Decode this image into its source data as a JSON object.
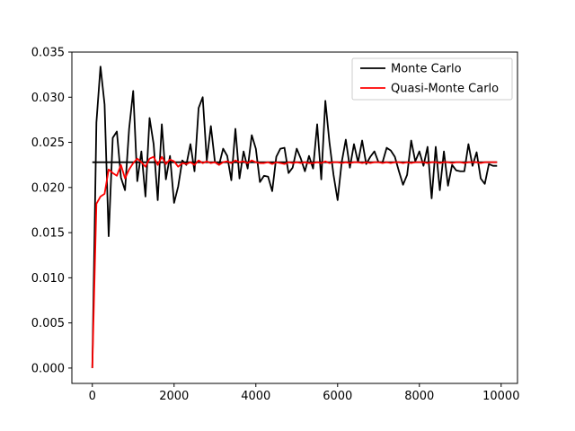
{
  "chart_data": {
    "type": "line",
    "title": "",
    "xlabel": "",
    "ylabel": "",
    "xlim": [
      -500,
      10400
    ],
    "ylim": [
      -0.0017,
      0.035
    ],
    "xticks": [
      0,
      2000,
      4000,
      6000,
      8000,
      10000
    ],
    "xtick_labels": [
      "0",
      "2000",
      "4000",
      "6000",
      "8000",
      "10000"
    ],
    "yticks": [
      0.0,
      0.005,
      0.01,
      0.015,
      0.02,
      0.025,
      0.03,
      0.035
    ],
    "ytick_labels": [
      "0.000",
      "0.005",
      "0.010",
      "0.015",
      "0.020",
      "0.025",
      "0.030",
      "0.035"
    ],
    "grid": false,
    "legend_position": "top-right",
    "reference_line": {
      "y": 0.0228,
      "x_range": [
        0,
        9900
      ],
      "color": "#000000"
    },
    "series": [
      {
        "name": "Monte Carlo",
        "color": "#000000",
        "x": [
          0,
          100,
          200,
          300,
          400,
          500,
          600,
          700,
          800,
          900,
          1000,
          1100,
          1200,
          1300,
          1400,
          1500,
          1600,
          1700,
          1800,
          1900,
          2000,
          2100,
          2200,
          2300,
          2400,
          2500,
          2600,
          2700,
          2800,
          2900,
          3000,
          3100,
          3200,
          3300,
          3400,
          3500,
          3600,
          3700,
          3800,
          3900,
          4000,
          4100,
          4200,
          4300,
          4400,
          4500,
          4600,
          4700,
          4800,
          4900,
          5000,
          5100,
          5200,
          5300,
          5400,
          5500,
          5600,
          5700,
          5800,
          5900,
          6000,
          6100,
          6200,
          6300,
          6400,
          6500,
          6600,
          6700,
          6800,
          6900,
          7000,
          7100,
          7200,
          7300,
          7400,
          7500,
          7600,
          7700,
          7800,
          7900,
          8000,
          8100,
          8200,
          8300,
          8400,
          8500,
          8600,
          8700,
          8800,
          8900,
          9000,
          9100,
          9200,
          9300,
          9400,
          9500,
          9600,
          9700,
          9800,
          9900
        ],
        "values": [
          0.0,
          0.0272,
          0.0334,
          0.0292,
          0.0146,
          0.0255,
          0.0262,
          0.0211,
          0.0197,
          0.0265,
          0.0307,
          0.0207,
          0.024,
          0.019,
          0.0277,
          0.0248,
          0.0186,
          0.027,
          0.0209,
          0.0235,
          0.0183,
          0.0201,
          0.023,
          0.0225,
          0.0248,
          0.0218,
          0.0288,
          0.03,
          0.023,
          0.0268,
          0.0228,
          0.0225,
          0.0243,
          0.0235,
          0.0208,
          0.0265,
          0.021,
          0.024,
          0.0221,
          0.0258,
          0.0243,
          0.0206,
          0.0213,
          0.0212,
          0.0196,
          0.0234,
          0.0243,
          0.0244,
          0.0216,
          0.0222,
          0.0243,
          0.0232,
          0.0218,
          0.0235,
          0.0221,
          0.027,
          0.0209,
          0.0296,
          0.025,
          0.0214,
          0.0186,
          0.0228,
          0.0253,
          0.0222,
          0.0248,
          0.0228,
          0.0252,
          0.0226,
          0.0234,
          0.024,
          0.0228,
          0.0228,
          0.0244,
          0.0241,
          0.0234,
          0.0218,
          0.0203,
          0.0214,
          0.0252,
          0.0229,
          0.024,
          0.0224,
          0.0245,
          0.0188,
          0.0245,
          0.0197,
          0.024,
          0.0202,
          0.0225,
          0.0219,
          0.0218,
          0.0218,
          0.0248,
          0.0224,
          0.0239,
          0.021,
          0.0204,
          0.0226,
          0.0224,
          0.0224
        ]
      },
      {
        "name": "Quasi-Monte Carlo",
        "color": "#ff0000",
        "x": [
          0,
          100,
          200,
          300,
          400,
          500,
          600,
          700,
          800,
          900,
          1000,
          1100,
          1200,
          1300,
          1400,
          1500,
          1600,
          1700,
          1800,
          1900,
          2000,
          2100,
          2200,
          2300,
          2400,
          2500,
          2600,
          2700,
          2800,
          2900,
          3000,
          3100,
          3200,
          3300,
          3400,
          3500,
          3600,
          3700,
          3800,
          3900,
          4000,
          4100,
          4200,
          4300,
          4400,
          4500,
          4600,
          4700,
          4800,
          4900,
          5000,
          5100,
          5200,
          5300,
          5400,
          5500,
          5600,
          5700,
          5800,
          5900,
          6000,
          6100,
          6200,
          6300,
          6400,
          6500,
          6600,
          6700,
          6800,
          6900,
          7000,
          7100,
          7200,
          7300,
          7400,
          7500,
          7600,
          7700,
          7800,
          7900,
          8000,
          8100,
          8200,
          8300,
          8400,
          8500,
          8600,
          8700,
          8800,
          8900,
          9000,
          9100,
          9200,
          9300,
          9400,
          9500,
          9600,
          9700,
          9800,
          9900
        ],
        "values": [
          0.0,
          0.0182,
          0.019,
          0.0193,
          0.022,
          0.0216,
          0.0213,
          0.0225,
          0.021,
          0.022,
          0.0227,
          0.0232,
          0.0228,
          0.0223,
          0.0232,
          0.0234,
          0.0225,
          0.0234,
          0.0226,
          0.0231,
          0.0229,
          0.0223,
          0.0227,
          0.0226,
          0.0228,
          0.0225,
          0.023,
          0.0227,
          0.0229,
          0.0227,
          0.0228,
          0.0225,
          0.0228,
          0.0229,
          0.0227,
          0.023,
          0.0228,
          0.0229,
          0.0227,
          0.023,
          0.0228,
          0.0227,
          0.0227,
          0.0228,
          0.0226,
          0.0228,
          0.0227,
          0.0226,
          0.0228,
          0.0227,
          0.0228,
          0.0227,
          0.0228,
          0.0227,
          0.0227,
          0.0228,
          0.0227,
          0.0229,
          0.0227,
          0.0228,
          0.0228,
          0.0227,
          0.0228,
          0.0227,
          0.0228,
          0.0228,
          0.0227,
          0.0228,
          0.0227,
          0.0228,
          0.0228,
          0.0227,
          0.0228,
          0.0227,
          0.0228,
          0.0228,
          0.0227,
          0.0228,
          0.0227,
          0.0228,
          0.0228,
          0.0228,
          0.0227,
          0.0228,
          0.0228,
          0.0227,
          0.0228,
          0.0228,
          0.0227,
          0.0228,
          0.0228,
          0.0227,
          0.0228,
          0.0228,
          0.0228,
          0.0227,
          0.0228,
          0.0228,
          0.0228,
          0.0228
        ]
      }
    ]
  }
}
